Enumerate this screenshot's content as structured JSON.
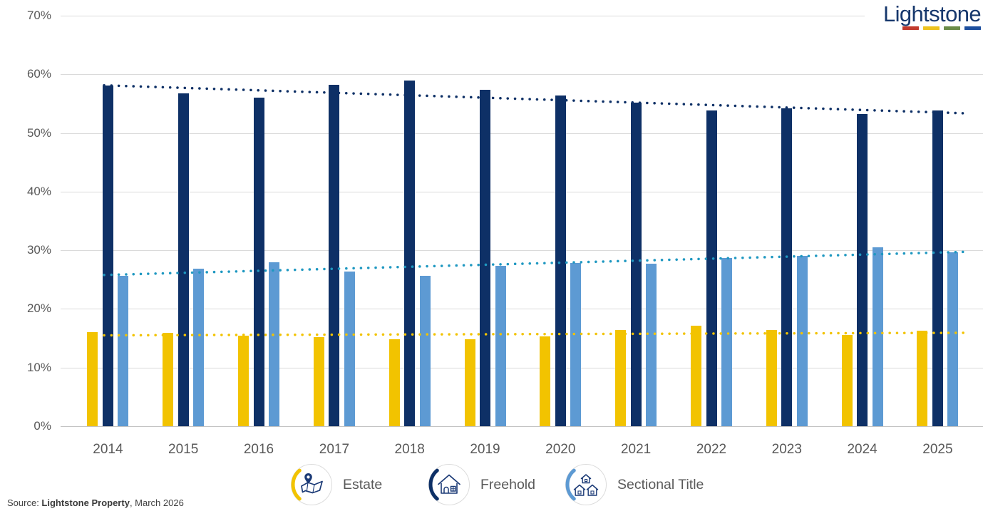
{
  "logo": {
    "text": "Lightstone",
    "underline_colors": [
      "#C23A2C",
      "#EEC31E",
      "#6B8C48",
      "#1D4F9E"
    ]
  },
  "source": {
    "prefix": "Source: ",
    "bold_text": "Lightstone Property",
    "suffix": ", March 2026"
  },
  "legend": {
    "items": [
      {
        "label": "Estate",
        "arc_color": "#F2C300",
        "icon": "map-pin-icon"
      },
      {
        "label": "Freehold",
        "arc_color": "#0E3066",
        "icon": "house-icon"
      },
      {
        "label": "Sectional Title",
        "arc_color": "#5D9AD3",
        "icon": "houses-icon"
      }
    ]
  },
  "chart_data": {
    "type": "bar",
    "title": "",
    "xlabel": "",
    "ylabel": "",
    "ylim": [
      0,
      70
    ],
    "ytick_step": 10,
    "ytick_labels": [
      "0%",
      "10%",
      "20%",
      "30%",
      "40%",
      "50%",
      "60%",
      "70%"
    ],
    "grid": true,
    "legend_position": "bottom",
    "categories": [
      "2014",
      "2015",
      "2016",
      "2017",
      "2018",
      "2019",
      "2020",
      "2021",
      "2022",
      "2023",
      "2024",
      "2025"
    ],
    "series": [
      {
        "name": "Estate",
        "color": "#F2C300",
        "values": [
          16.1,
          15.9,
          15.4,
          15.2,
          14.8,
          14.8,
          15.3,
          16.4,
          17.1,
          16.4,
          15.6,
          16.3
        ]
      },
      {
        "name": "Freehold",
        "color": "#0E3066",
        "values": [
          58.1,
          56.8,
          56.0,
          58.2,
          58.9,
          57.4,
          56.4,
          55.2,
          53.8,
          54.2,
          53.2,
          53.8
        ]
      },
      {
        "name": "Sectional Title",
        "color": "#5D9AD3",
        "values": [
          25.6,
          26.9,
          28.0,
          26.4,
          25.7,
          27.4,
          27.8,
          27.7,
          28.7,
          29.0,
          30.5,
          29.6
        ]
      }
    ],
    "trendlines": [
      {
        "series": "Estate",
        "color": "#F2C300",
        "start": 15.5,
        "end": 15.9
      },
      {
        "series": "Freehold",
        "color": "#0E3066",
        "start": 58.1,
        "end": 53.5
      },
      {
        "series": "Sectional Title",
        "color": "#1F98C1",
        "start": 25.8,
        "end": 29.6
      }
    ]
  }
}
